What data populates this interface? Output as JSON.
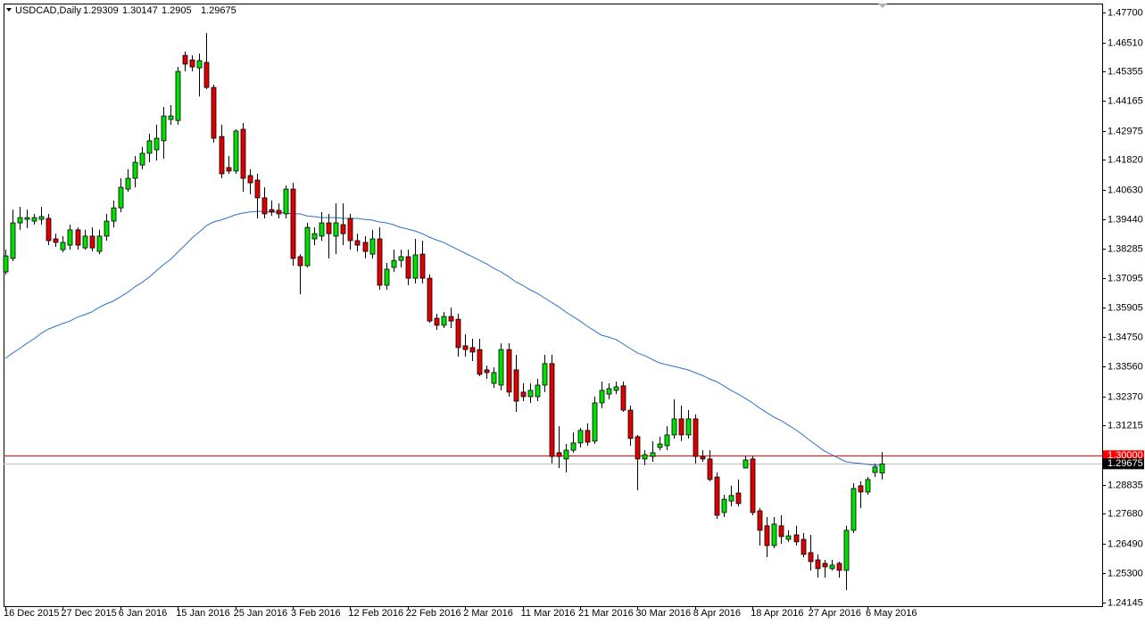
{
  "chart_data": {
    "type": "candlestick",
    "symbol": "USDCAD,Daily",
    "categories": [
      "16 Dec 2015",
      null,
      null,
      null,
      null,
      null,
      null,
      null,
      "27 Dec 2015",
      null,
      null,
      null,
      null,
      null,
      null,
      null,
      "6 Jan 2016",
      null,
      null,
      null,
      null,
      null,
      null,
      null,
      "15 Jan 2016",
      null,
      null,
      null,
      null,
      null,
      null,
      null,
      "25 Jan 2016",
      null,
      null,
      null,
      null,
      null,
      null,
      null,
      "3 Feb 2016",
      null,
      null,
      null,
      null,
      null,
      null,
      null,
      "12 Feb 2016",
      null,
      null,
      null,
      null,
      null,
      null,
      null,
      "22 Feb 2016",
      null,
      null,
      null,
      null,
      null,
      null,
      null,
      "2 Mar 2016",
      null,
      null,
      null,
      null,
      null,
      null,
      null,
      "11 Mar 2016",
      null,
      null,
      null,
      null,
      null,
      null,
      null,
      "21 Mar 2016",
      null,
      null,
      null,
      null,
      null,
      null,
      null,
      "30 Mar 2016",
      null,
      null,
      null,
      null,
      null,
      null,
      null,
      "8 Apr 2016",
      null,
      null,
      null,
      null,
      null,
      null,
      null,
      "18 Apr 2016",
      null,
      null,
      null,
      null,
      null,
      null,
      null,
      "27 Apr 2016",
      null,
      null,
      null,
      null,
      null,
      null,
      null,
      "6 May 2016",
      null,
      null
    ],
    "open": [
      1.3734,
      1.3788,
      1.393,
      1.3944,
      1.3937,
      1.3944,
      1.3948,
      1.3866,
      1.3823,
      1.3841,
      1.3902,
      1.383,
      1.3877,
      1.3816,
      1.3877,
      1.3937,
      1.399,
      1.4065,
      1.4108,
      1.4161,
      1.4208,
      1.4222,
      1.4258,
      1.4343,
      1.4339,
      1.4599,
      1.4581,
      1.4549,
      1.4571,
      1.4471,
      1.4275,
      1.4151,
      1.4137,
      1.4304,
      1.4119,
      1.4101,
      1.403,
      1.3983,
      1.398,
      1.3966,
      1.4065,
      1.3795,
      1.3759,
      1.3866,
      1.3877,
      1.393,
      1.3877,
      1.3923,
      1.3948,
      1.3859,
      1.3852,
      1.3805,
      1.3866,
      1.3681,
      1.3752,
      1.378,
      1.3795,
      1.3709,
      1.3805,
      1.3709,
      1.3549,
      1.3521,
      1.3556,
      1.3545,
      1.3439,
      1.3432,
      1.3424,
      1.3343,
      1.3289,
      1.3282,
      1.3424,
      1.3343,
      1.3254,
      1.3236,
      1.3236,
      1.3282,
      1.3368,
      1.3012,
      1.2987,
      1.3022,
      1.3051,
      1.3101,
      1.3058,
      1.3211,
      1.3246,
      1.3261,
      1.3279,
      1.3182,
      1.3076,
      1.2987,
      1.2997,
      1.3033,
      1.304,
      1.3083,
      1.3147,
      1.3083,
      1.3147,
      1.2997,
      1.2987,
      1.2915,
      1.2773,
      1.2819,
      1.2851,
      1.2951,
      1.2987,
      1.278,
      1.272,
      1.2641,
      1.272,
      1.2666,
      1.2684,
      1.2666,
      1.2613,
      1.2584,
      1.257,
      1.2549,
      1.257,
      1.2542,
      1.2702,
      1.288,
      1.2855,
      1.2933,
      1.29309
    ],
    "high": [
      1.3823,
      1.3983,
      1.3994,
      1.3983,
      1.3966,
      1.3994,
      1.3966,
      1.3887,
      1.3877,
      1.3923,
      1.3912,
      1.3902,
      1.3912,
      1.3902,
      1.3966,
      1.4019,
      1.4108,
      1.4144,
      1.4197,
      1.4233,
      1.4286,
      1.4322,
      1.4393,
      1.44,
      1.4553,
      1.4614,
      1.4599,
      1.4606,
      1.4688,
      1.4482,
      1.4322,
      1.4197,
      1.4304,
      1.4329,
      1.4144,
      1.4126,
      1.4072,
      1.4019,
      1.4008,
      1.408,
      1.409,
      1.3805,
      1.393,
      1.3912,
      1.3973,
      1.3966,
      1.4008,
      1.4008,
      1.3966,
      1.3887,
      1.3877,
      1.3902,
      1.3912,
      1.377,
      1.3823,
      1.3823,
      1.3823,
      1.3866,
      1.3859,
      1.3724,
      1.3567,
      1.3574,
      1.3592,
      1.3567,
      1.3485,
      1.3467,
      1.3467,
      1.336,
      1.3353,
      1.3449,
      1.3449,
      1.3403,
      1.3289,
      1.3289,
      1.3307,
      1.3403,
      1.3403,
      1.3118,
      1.3047,
      1.3093,
      1.3111,
      1.3129,
      1.3236,
      1.3296,
      1.3289,
      1.3296,
      1.3296,
      1.32,
      1.3083,
      1.3022,
      1.3058,
      1.3076,
      1.3118,
      1.3225,
      1.32,
      1.3182,
      1.3165,
      1.3022,
      1.3022,
      1.2933,
      1.2844,
      1.288,
      1.2905,
      1.2997,
      1.2997,
      1.2791,
      1.2755,
      1.2755,
      1.2762,
      1.2702,
      1.272,
      1.2691,
      1.2684,
      1.2606,
      1.2584,
      1.2584,
      1.2577,
      1.272,
      1.289,
      1.2898,
      1.2915,
      1.2969,
      1.30147
    ],
    "low": [
      1.3724,
      1.3777,
      1.3902,
      1.3909,
      1.3923,
      1.3923,
      1.3841,
      1.3834,
      1.3813,
      1.3823,
      1.3823,
      1.3823,
      1.3816,
      1.3805,
      1.3859,
      1.3912,
      1.3973,
      1.4054,
      1.4072,
      1.4144,
      1.4172,
      1.4179,
      1.4186,
      1.4322,
      1.4322,
      1.4535,
      1.4535,
      1.4435,
      1.4464,
      1.425,
      1.4108,
      1.4126,
      1.4126,
      1.4054,
      1.4044,
      1.3948,
      1.3948,
      1.3958,
      1.3948,
      1.3948,
      1.3759,
      1.3645,
      1.3752,
      1.3841,
      1.3859,
      1.3788,
      1.3805,
      1.3841,
      1.3823,
      1.3816,
      1.3788,
      1.3788,
      1.3663,
      1.3663,
      1.3734,
      1.3752,
      1.3681,
      1.3688,
      1.3688,
      1.3531,
      1.3503,
      1.351,
      1.351,
      1.3396,
      1.3396,
      1.3378,
      1.3318,
      1.3307,
      1.3271,
      1.3261,
      1.3236,
      1.3175,
      1.3218,
      1.3211,
      1.3218,
      1.3254,
      1.2969,
      1.2951,
      1.2933,
      1.3012,
      1.3033,
      1.304,
      1.3047,
      1.319,
      1.3225,
      1.3246,
      1.3175,
      1.304,
      1.2862,
      1.2962,
      1.2976,
      1.3022,
      1.3022,
      1.3069,
      1.3058,
      1.3069,
      1.2969,
      1.2976,
      1.2898,
      1.2748,
      1.2755,
      1.2798,
      1.2798,
      1.2951,
      1.2762,
      1.2641,
      1.2595,
      1.2631,
      1.2648,
      1.2656,
      1.2641,
      1.2595,
      1.2542,
      1.2513,
      1.2513,
      1.2542,
      1.2513,
      1.2463,
      1.2691,
      1.2791,
      1.2844,
      1.2915,
      1.2905
    ],
    "close": [
      1.3798,
      1.393,
      1.3951,
      1.3951,
      1.3951,
      1.3955,
      1.3859,
      1.3852,
      1.3852,
      1.3902,
      1.3841,
      1.3877,
      1.383,
      1.3877,
      1.3937,
      1.399,
      1.4072,
      1.4108,
      1.4172,
      1.4208,
      1.4258,
      1.4268,
      1.4357,
      1.4357,
      1.4535,
      1.4564,
      1.4553,
      1.4578,
      1.4471,
      1.4268,
      1.4126,
      1.4137,
      1.4297,
      1.4108,
      1.409,
      1.403,
      1.3966,
      1.3973,
      1.3966,
      1.4065,
      1.3788,
      1.3759,
      1.3912,
      1.3887,
      1.393,
      1.3887,
      1.393,
      1.3887,
      1.3859,
      1.3841,
      1.3816,
      1.3866,
      1.3681,
      1.3745,
      1.378,
      1.3795,
      1.3709,
      1.3802,
      1.3709,
      1.3538,
      1.3521,
      1.3556,
      1.3538,
      1.3432,
      1.3424,
      1.3414,
      1.3325,
      1.3332,
      1.3332,
      1.3424,
      1.3254,
      1.3218,
      1.3236,
      1.3261,
      1.3282,
      1.3368,
      1.2997,
      1.2997,
      1.3022,
      1.3051,
      1.3101,
      1.3054,
      1.3211,
      1.3261,
      1.3268,
      1.3275,
      1.3182,
      1.3069,
      1.2987,
      1.3004,
      1.3012,
      1.3047,
      1.3083,
      1.3147,
      1.3083,
      1.3147,
      1.2997,
      1.2987,
      1.2905,
      1.2762,
      1.2826,
      1.2841,
      1.2809,
      1.2983,
      1.2773,
      1.2702,
      1.2641,
      1.2727,
      1.2677,
      1.268,
      1.2656,
      1.2606,
      1.2577,
      1.2549,
      1.2556,
      1.2563,
      1.2542,
      1.2702,
      1.2869,
      1.2855,
      1.2905,
      1.2955,
      1.29675
    ],
    "up_color": "#00e000",
    "down_color": "#e00000",
    "wick_color": "#000000",
    "lines": [
      {
        "color": "#2a74c9",
        "values": [
          1.3389,
          1.341,
          1.3428,
          1.3449,
          1.3467,
          1.3489,
          1.3506,
          1.3517,
          1.3528,
          1.3538,
          1.3553,
          1.3563,
          1.3574,
          1.3592,
          1.3606,
          1.3617,
          1.3635,
          1.3652,
          1.3674,
          1.3692,
          1.3713,
          1.3738,
          1.3763,
          1.3784,
          1.3813,
          1.3841,
          1.387,
          1.3894,
          1.3919,
          1.3934,
          1.3941,
          1.3951,
          1.3962,
          1.3969,
          1.3973,
          1.3976,
          1.3976,
          1.3973,
          1.3973,
          1.3969,
          1.3966,
          1.3966,
          1.3958,
          1.3955,
          1.3951,
          1.3951,
          1.3951,
          1.3948,
          1.3948,
          1.3948,
          1.3944,
          1.3941,
          1.3934,
          1.393,
          1.3923,
          1.3912,
          1.3905,
          1.3898,
          1.3887,
          1.3873,
          1.3862,
          1.3852,
          1.3837,
          1.3823,
          1.3809,
          1.3795,
          1.378,
          1.3766,
          1.3748,
          1.3734,
          1.3716,
          1.3695,
          1.3681,
          1.3663,
          1.3649,
          1.3631,
          1.3613,
          1.3595,
          1.3574,
          1.3556,
          1.3538,
          1.3517,
          1.3499,
          1.3481,
          1.3474,
          1.3464,
          1.3446,
          1.3428,
          1.341,
          1.34,
          1.3385,
          1.3371,
          1.3364,
          1.3357,
          1.335,
          1.3343,
          1.3332,
          1.3321,
          1.3307,
          1.3296,
          1.3279,
          1.3261,
          1.3246,
          1.3229,
          1.3211,
          1.319,
          1.3172,
          1.3154,
          1.314,
          1.3122,
          1.3104,
          1.3083,
          1.3061,
          1.304,
          1.3019,
          1.3004,
          1.299,
          1.2976,
          1.2972,
          1.2969,
          1.2965,
          1.2962,
          1.2962
        ]
      }
    ],
    "levels": [
      {
        "value": 1.3,
        "label": "1.30000",
        "color": "#ff0000"
      }
    ],
    "last_price_color": "#c0c0c0",
    "ylim": [
      1.2399,
      1.4806
    ],
    "yticks": [
      {
        "value": 1.477,
        "label": "1.47700"
      },
      {
        "value": 1.4651,
        "label": "1.46510"
      },
      {
        "value": 1.45355,
        "label": "1.45355"
      },
      {
        "value": 1.44165,
        "label": "1.44165"
      },
      {
        "value": 1.42975,
        "label": "1.42975"
      },
      {
        "value": 1.4182,
        "label": "1.41820"
      },
      {
        "value": 1.4063,
        "label": "1.40630"
      },
      {
        "value": 1.3944,
        "label": "1.39440"
      },
      {
        "value": 1.38285,
        "label": "1.38285"
      },
      {
        "value": 1.37095,
        "label": "1.37095"
      },
      {
        "value": 1.35905,
        "label": "1.35905"
      },
      {
        "value": 1.3475,
        "label": "1.34750"
      },
      {
        "value": 1.3356,
        "label": "1.33560"
      },
      {
        "value": 1.3237,
        "label": "1.32370"
      },
      {
        "value": 1.31215,
        "label": "1.31215"
      },
      {
        "value": 1.28835,
        "label": "1.28835"
      },
      {
        "value": 1.2768,
        "label": "1.27680"
      },
      {
        "value": 1.2649,
        "label": "1.26490"
      },
      {
        "value": 1.253,
        "label": "1.25300"
      },
      {
        "value": 1.24145,
        "label": "1.24145"
      }
    ],
    "grid": false
  }
}
